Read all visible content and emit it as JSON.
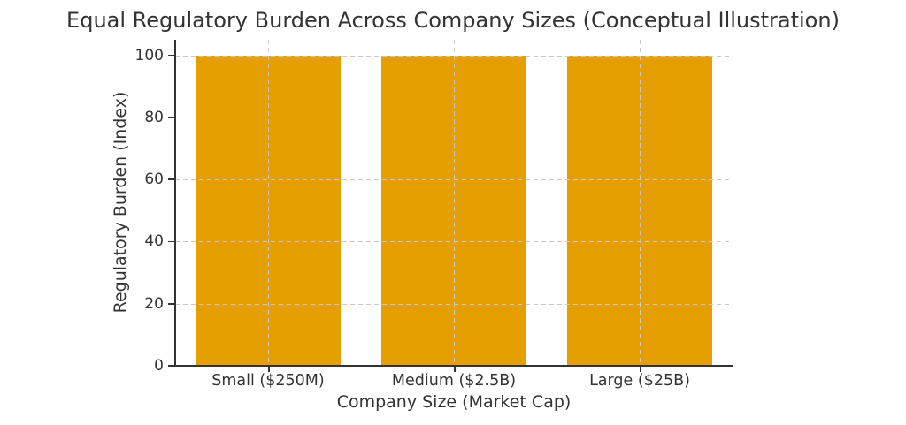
{
  "chart_data": {
    "type": "bar",
    "title": "Equal Regulatory Burden Across Company Sizes (Conceptual Illustration)",
    "xlabel": "Company Size (Market Cap)",
    "ylabel": "Regulatory Burden (Index)",
    "categories": [
      "Small ($250M)",
      "Medium ($2.5B)",
      "Large ($25B)"
    ],
    "values": [
      100,
      100,
      100
    ],
    "yticks": [
      0,
      20,
      40,
      60,
      80,
      100
    ],
    "ylim": [
      0,
      105
    ],
    "grid": "dashed horizontal and vertical gridlines drawn above bars",
    "legend": "none",
    "colors": {
      "bar": "#E69F00",
      "grid": "#C9C9C9",
      "text": "#333333",
      "spine": "#333333",
      "background": "#FFFFFF"
    }
  }
}
